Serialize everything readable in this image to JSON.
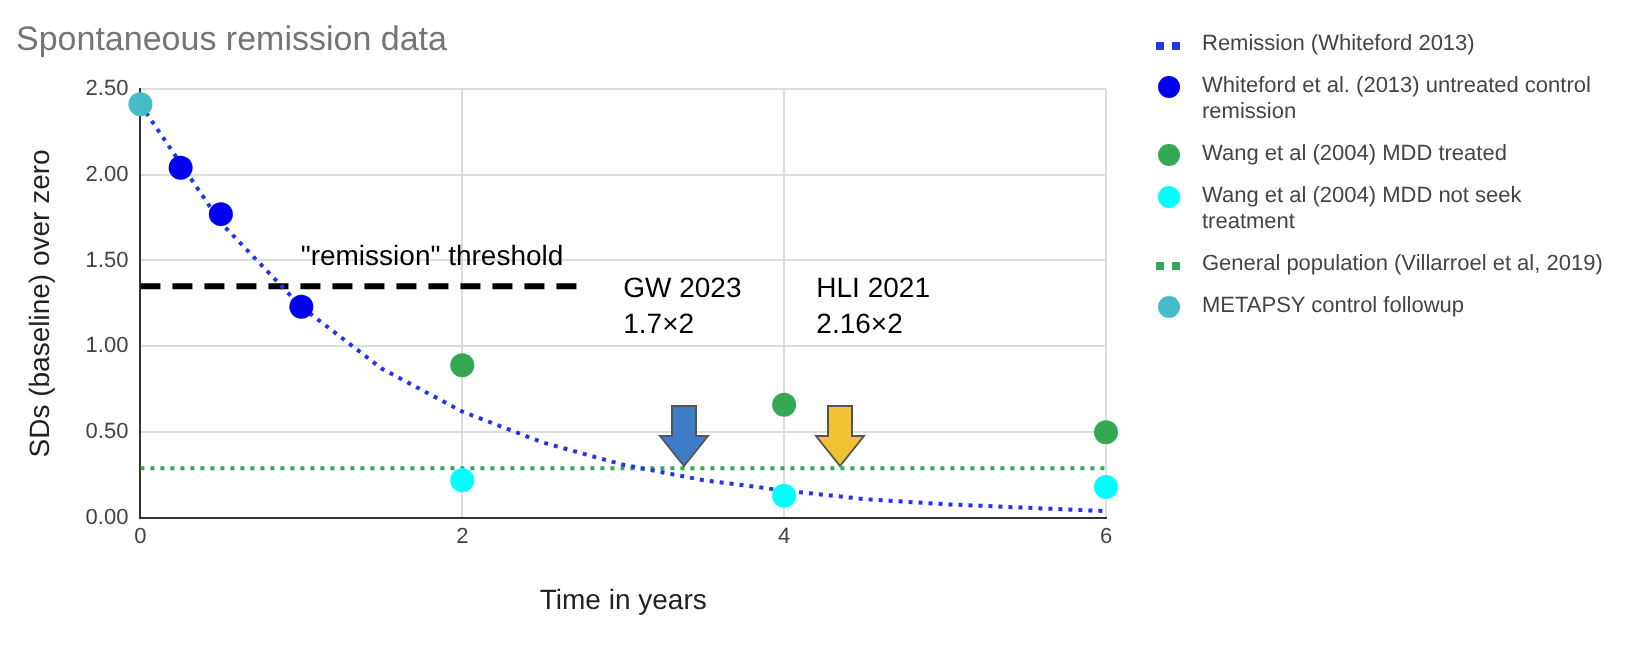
{
  "chart_data": {
    "type": "scatter",
    "title": "Spontaneous remission data",
    "xlabel": "Time in years",
    "ylabel": "SDs (baseline) over zero",
    "xlim": [
      0,
      6
    ],
    "xticks": [
      0,
      2,
      4,
      6
    ],
    "ylim": [
      0,
      2.5
    ],
    "yticks": [
      {
        "value": 0,
        "label": "0.00"
      },
      {
        "value": 0.5,
        "label": "0.50"
      },
      {
        "value": 1,
        "label": "1.00"
      },
      {
        "value": 1.5,
        "label": "1.50"
      },
      {
        "value": 2,
        "label": "2.00"
      },
      {
        "value": 2.5,
        "label": "2.50"
      }
    ],
    "grid": true,
    "legend": "right",
    "series": [
      {
        "name": "Remission (Whiteford 2013)",
        "type": "line",
        "color": "#2233ee",
        "marker": "none",
        "line_style": "dotted",
        "x": [
          0,
          0.5,
          1,
          1.5,
          2,
          2.5,
          3,
          3.5,
          4,
          4.5,
          5,
          5.5,
          6
        ],
        "values": [
          2.41,
          1.72,
          1.23,
          0.87,
          0.62,
          0.44,
          0.31,
          0.22,
          0.16,
          0.11,
          0.08,
          0.06,
          0.04
        ]
      },
      {
        "name": "Whiteford et al. (2013) untreated control remission",
        "color": "#0000ee",
        "marker": "circle",
        "x": [
          0.25,
          0.5,
          1
        ],
        "values": [
          2.04,
          1.77,
          1.23
        ]
      },
      {
        "name": "Wang et al (2004) MDD treated",
        "color": "#34a853",
        "marker": "circle",
        "x": [
          2,
          4,
          6
        ],
        "values": [
          0.89,
          0.66,
          0.5
        ]
      },
      {
        "name": "Wang et al (2004) MDD not seek treatment",
        "color": "#00ffff",
        "marker": "circle",
        "x": [
          2,
          4,
          6
        ],
        "values": [
          0.22,
          0.13,
          0.18
        ]
      },
      {
        "name": "General population (Villarroel et al, 2019)",
        "type": "line",
        "color": "#34a853",
        "marker": "none",
        "line_style": "dotted",
        "x": [
          0,
          6
        ],
        "values": [
          0.29,
          0.29
        ]
      },
      {
        "name": "METAPSY control followup",
        "color": "#46bdc6",
        "marker": "circle",
        "x": [
          0
        ],
        "values": [
          2.41
        ]
      },
      {
        "type": "line",
        "color": "#000000",
        "marker": "none",
        "line_style": "dashed",
        "x": [
          0,
          2.75
        ],
        "values": [
          1.35,
          1.35
        ]
      }
    ],
    "annotations": [
      "\"remission\" threshold",
      "GW 2023\n1.7×2",
      "HLI 2021\n2.16×2"
    ]
  }
}
